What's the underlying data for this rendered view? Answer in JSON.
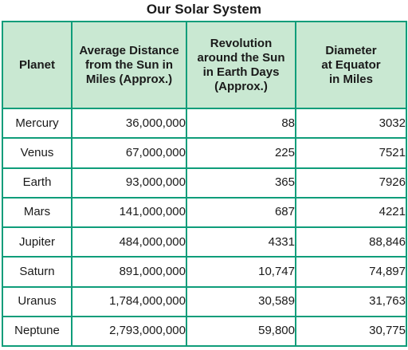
{
  "title": "Our Solar System",
  "headers": {
    "planet": [
      "Planet"
    ],
    "distance": [
      "Average Distance",
      "from the Sun in",
      "Miles (Approx.)"
    ],
    "revolution": [
      "Revolution",
      "around the Sun",
      "in Earth Days",
      "(Approx.)"
    ],
    "diameter": [
      "Diameter",
      "at Equator",
      "in Miles"
    ]
  },
  "rows": [
    {
      "planet": "Mercury",
      "distance": "36,000,000",
      "revolution": "88",
      "diameter": "3032"
    },
    {
      "planet": "Venus",
      "distance": "67,000,000",
      "revolution": "225",
      "diameter": "7521"
    },
    {
      "planet": "Earth",
      "distance": "93,000,000",
      "revolution": "365",
      "diameter": "7926"
    },
    {
      "planet": "Mars",
      "distance": "141,000,000",
      "revolution": "687",
      "diameter": "4221"
    },
    {
      "planet": "Jupiter",
      "distance": "484,000,000",
      "revolution": "4331",
      "diameter": "88,846"
    },
    {
      "planet": "Saturn",
      "distance": "891,000,000",
      "revolution": "10,747",
      "diameter": "74,897"
    },
    {
      "planet": "Uranus",
      "distance": "1,784,000,000",
      "revolution": "30,589",
      "diameter": "31,763"
    },
    {
      "planet": "Neptune",
      "distance": "2,793,000,000",
      "revolution": "59,800",
      "diameter": "30,775"
    }
  ],
  "colors": {
    "border": "#0f9d7a",
    "header_background": "#c9e8d2"
  }
}
